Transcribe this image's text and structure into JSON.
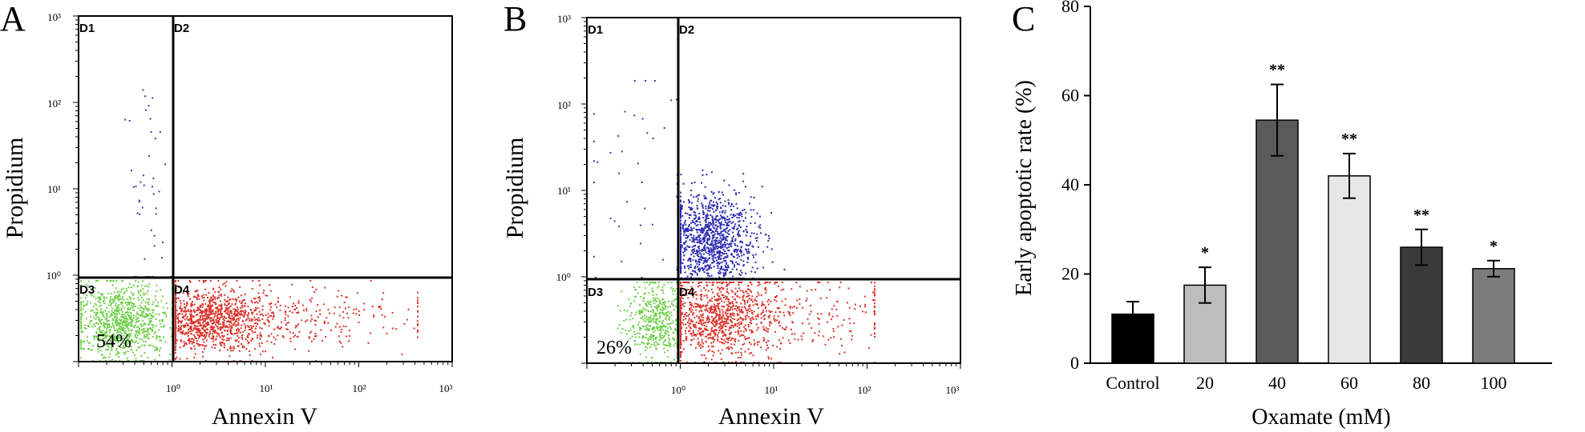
{
  "chart_data": [
    {
      "panel": "A",
      "type": "scatter",
      "xlabel": "Annexin V",
      "ylabel": "Propidium",
      "x_ticks": [
        "10⁰",
        "10¹",
        "10²",
        "10³"
      ],
      "y_ticks": [
        "10⁰",
        "10¹",
        "10²",
        "10³"
      ],
      "xlim": [
        "10^-1",
        "10^3"
      ],
      "ylim": [
        "10^-1",
        "10^3"
      ],
      "quadrants": [
        "D1",
        "D2",
        "D3",
        "D4"
      ],
      "annotation": "54%",
      "gate_x": 1,
      "gate_y": 1,
      "population_colors": {
        "D1": "#3a3aa8",
        "D3": "#6fcf4a",
        "D4": "#d9342b"
      }
    },
    {
      "panel": "B",
      "type": "scatter",
      "xlabel": "Annexin V",
      "ylabel": "Propidium",
      "x_ticks": [
        "10⁰",
        "10¹",
        "10²",
        "10³"
      ],
      "y_ticks": [
        "10⁰",
        "10¹",
        "10²",
        "10³"
      ],
      "xlim": [
        "10^-1",
        "10^3"
      ],
      "ylim": [
        "10^-1",
        "10^3"
      ],
      "quadrants": [
        "D1",
        "D2",
        "D3",
        "D4"
      ],
      "annotation": "26%",
      "gate_x": 1,
      "gate_y": 1,
      "population_colors": {
        "D2": "#2a2ab0",
        "D3": "#6fcf4a",
        "D4": "#d9342b"
      }
    },
    {
      "panel": "C",
      "type": "bar",
      "categories": [
        "Control",
        "20",
        "40",
        "60",
        "80",
        "100"
      ],
      "values": [
        11,
        17.5,
        54.5,
        42,
        26,
        21.2
      ],
      "errors": [
        2.8,
        4,
        8,
        5,
        4,
        1.8
      ],
      "significance": [
        "",
        "*",
        "**",
        "**",
        "**",
        "*"
      ],
      "bar_colors": [
        "#000000",
        "#bdbdbd",
        "#5a5a5a",
        "#e6e8e6",
        "#3a3a3a",
        "#7c7c7c"
      ],
      "xlabel": "Oxamate (mM)",
      "ylabel": "Early apoptotic rate (%)",
      "ylim": [
        0,
        80
      ],
      "y_ticks": [
        0,
        20,
        40,
        60,
        80
      ]
    }
  ],
  "panels": {
    "A": {
      "letter": "A"
    },
    "B": {
      "letter": "B"
    },
    "C": {
      "letter": "C"
    }
  }
}
